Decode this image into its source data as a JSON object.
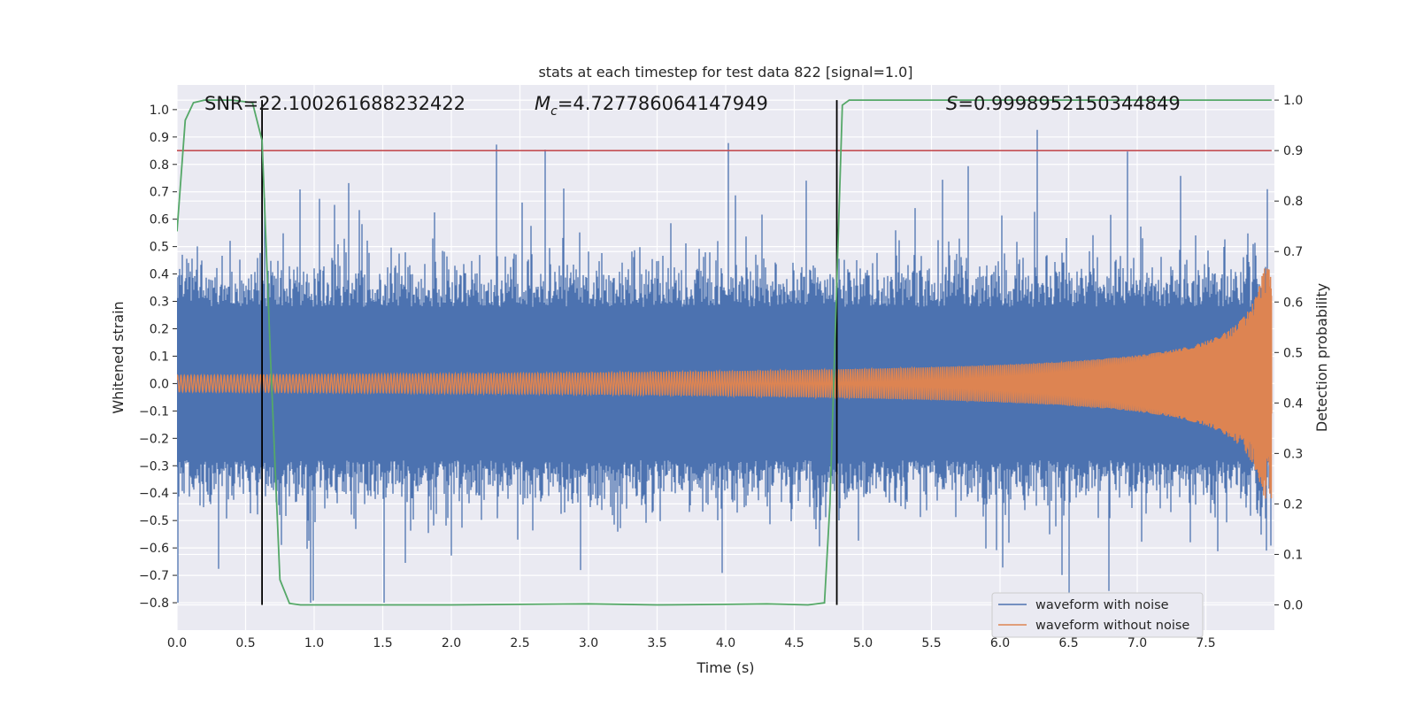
{
  "chart_data": {
    "type": "line",
    "title": "stats at each timestep for test data 822 [signal=1.0]",
    "xlabel": "Time (s)",
    "ylabel": "Whitened strain",
    "ylabel_right": "Detection probability",
    "xlim": [
      0.0,
      8.0
    ],
    "ylim": [
      -0.9,
      1.09
    ],
    "ylim_right": [
      -0.05,
      1.03
    ],
    "x_ticks": [
      0.0,
      0.5,
      1.0,
      1.5,
      2.0,
      2.5,
      3.0,
      3.5,
      4.0,
      4.5,
      5.0,
      5.5,
      6.0,
      6.5,
      7.0,
      7.5
    ],
    "x_tick_labels": [
      "0.0",
      "0.5",
      "1.0",
      "1.5",
      "2.0",
      "2.5",
      "3.0",
      "3.5",
      "4.0",
      "4.5",
      "5.0",
      "5.5",
      "6.0",
      "6.5",
      "7.0",
      "7.5"
    ],
    "y_ticks": [
      1.0,
      0.9,
      0.8,
      0.7,
      0.6,
      0.5,
      0.4,
      0.3,
      0.2,
      0.1,
      0.0,
      -0.1,
      -0.2,
      -0.3,
      -0.4,
      -0.5,
      -0.6,
      -0.7,
      -0.8
    ],
    "y_tick_labels": [
      "1.0",
      "0.9",
      "0.8",
      "0.7",
      "0.6",
      "0.5",
      "0.4",
      "0.3",
      "0.2",
      "0.1",
      "0.0",
      "−0.1",
      "−0.2",
      "−0.3",
      "−0.4",
      "−0.5",
      "−0.6",
      "−0.7",
      "−0.8"
    ],
    "y_right_ticks": [
      1.0,
      0.9,
      0.8,
      0.7,
      0.6,
      0.5,
      0.4,
      0.3,
      0.2,
      0.1,
      0.0
    ],
    "y_right_tick_labels": [
      "1.0",
      "0.9",
      "0.8",
      "0.7",
      "0.6",
      "0.5",
      "0.4",
      "0.3",
      "0.2",
      "0.1",
      "0.0"
    ],
    "grid": true,
    "legend_position": "bottom-right",
    "annotations": [
      {
        "text": "SNR=22.100261688232422",
        "x": 0.2
      },
      {
        "text": "=4.727786064147949",
        "prefix_symbol": "M",
        "prefix_sub": "c",
        "x": 2.6
      },
      {
        "text": "=0.9998952150344849",
        "prefix_symbol": "S",
        "x": 5.6
      }
    ],
    "vertical_lines": [
      0.62,
      4.81
    ],
    "threshold_line_right_axis": 0.9,
    "series": [
      {
        "name": "waveform with noise",
        "color": "#4c72b0",
        "description_envelope": {
          "baseline_upper": 0.28,
          "baseline_lower": -0.28,
          "peak_max": 1.0,
          "peak_min": -0.8
        }
      },
      {
        "name": "waveform without noise",
        "color": "#dd8452",
        "description_envelope": {
          "amplitude_start": 0.03,
          "amplitude_end": 0.42,
          "end_time": 7.98
        }
      },
      {
        "name": "detection probability",
        "axis": "right",
        "color": "#55a868",
        "x": [
          0.0,
          0.06,
          0.12,
          0.2,
          0.3,
          0.4,
          0.55,
          0.62,
          0.68,
          0.75,
          0.82,
          0.9,
          1.0,
          2.0,
          3.0,
          3.5,
          4.0,
          4.3,
          4.6,
          4.72,
          4.76,
          4.85,
          4.9,
          5.0,
          6.0,
          7.0,
          7.98
        ],
        "y": [
          0.74,
          0.96,
          0.995,
          1.0,
          1.0,
          1.0,
          0.995,
          0.92,
          0.5,
          0.05,
          0.003,
          0.0,
          0.0,
          0.0,
          0.002,
          0.0,
          0.001,
          0.002,
          0.0,
          0.004,
          0.2,
          0.99,
          1.0,
          1.0,
          1.0,
          1.0,
          1.0
        ]
      },
      {
        "name": "detection threshold",
        "axis": "right",
        "color": "#c44e52",
        "x": [
          0.0,
          7.98
        ],
        "y": [
          0.9,
          0.9
        ]
      }
    ]
  }
}
